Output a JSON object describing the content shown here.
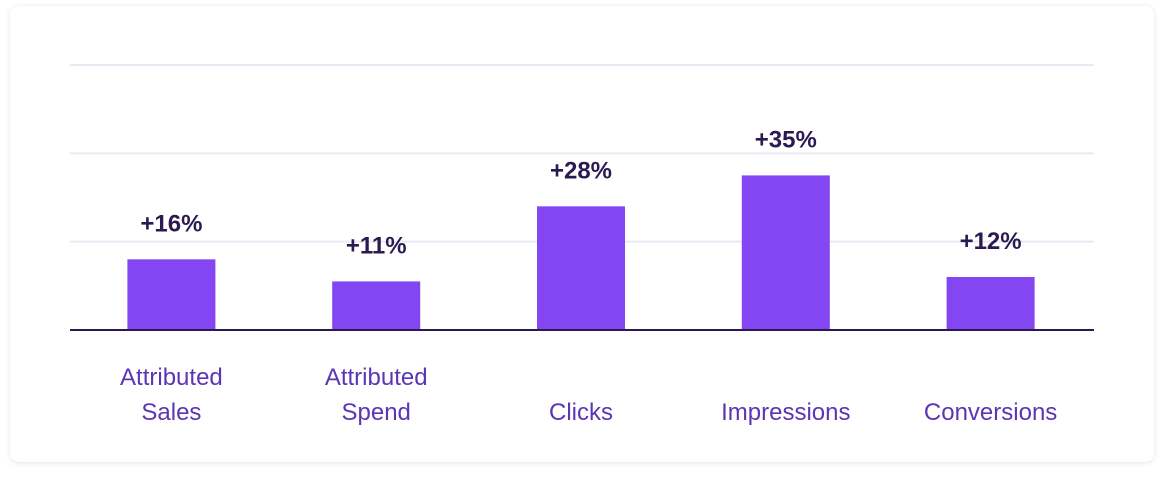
{
  "chart_data": {
    "type": "bar",
    "categories": [
      [
        "Attributed",
        "Sales"
      ],
      [
        "Attributed",
        "Spend"
      ],
      [
        "Clicks"
      ],
      [
        "Impressions"
      ],
      [
        "Conversions"
      ]
    ],
    "values": [
      16,
      11,
      28,
      35,
      12
    ],
    "value_labels": [
      "+16%",
      "+11%",
      "+28%",
      "+35%",
      "+12%"
    ],
    "ylim": [
      0,
      60
    ],
    "gridlines": [
      20,
      40,
      60
    ],
    "grid": true,
    "title": "",
    "xlabel": "",
    "ylabel": ""
  },
  "colors": {
    "bar": "#8445f2",
    "value_text": "#2b1a52",
    "category_text": "#5b35b5",
    "grid": "#e6eaf2",
    "baseline": "#2b1a52"
  }
}
